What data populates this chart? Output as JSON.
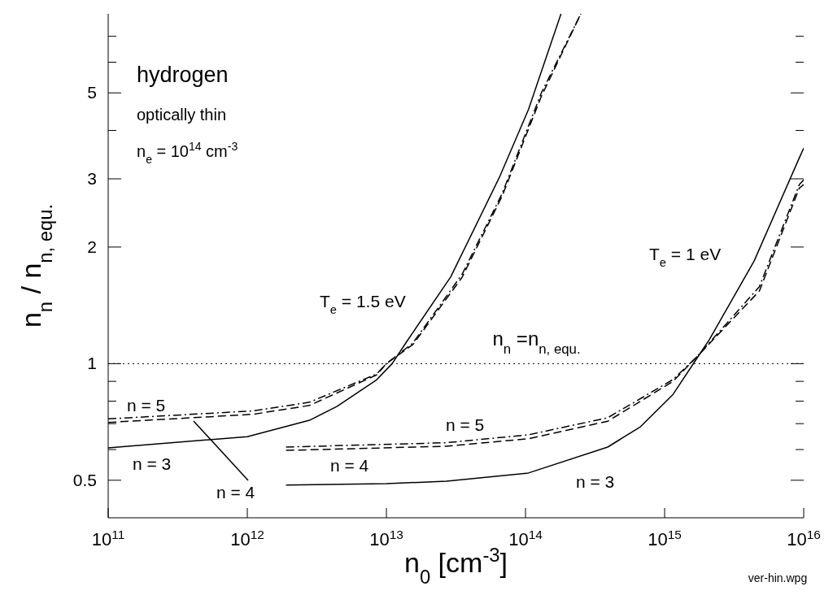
{
  "chart_data": {
    "type": "line",
    "xlabel": "n$_{0}$ [cm$^{-3}$]",
    "ylabel": "n$_{n}$ / n$_{n, equ.}$",
    "log": "xy",
    "xlim": [
      100000000000.0,
      1e+16
    ],
    "xticks": [
      {
        "value": 100000000000.0,
        "label": "10$^{11}$"
      },
      {
        "value": 1000000000000.0,
        "label": "10$^{12}$"
      },
      {
        "value": 10000000000000.0,
        "label": "10$^{13}$"
      },
      {
        "value": 100000000000000.0,
        "label": "10$^{14}$"
      },
      {
        "value": 1000000000000000.0,
        "label": "10$^{15}$"
      },
      {
        "value": 1e+16,
        "label": "10$^{16}$"
      }
    ],
    "ylim": [
      0.4,
      8
    ],
    "yticks": [
      0.5,
      {
        "value": 0.6,
        "label": null
      },
      {
        "value": 0.7,
        "label": null
      },
      {
        "value": 0.8,
        "label": null
      },
      {
        "value": 0.9,
        "label": null
      },
      1,
      2,
      3,
      {
        "value": 4,
        "label": null
      },
      5,
      {
        "value": 6,
        "label": null
      },
      {
        "value": 7,
        "label": null
      }
    ],
    "ref_lines": [
      {
        "axis": "y",
        "value": 1,
        "label": "n$_{n}$ =n$_{n, equ.}$",
        "color": "#000000",
        "line_style": "dotted"
      }
    ],
    "annotations": [
      "hydrogen",
      "optically thin",
      "n$_{e}$ = 10$^{14}$ cm$^{-3}$",
      "T$_{e}$ = 1.5 eV",
      "T$_{e}$  = 1 eV",
      "ver-hin.wpg"
    ],
    "series": [
      {
        "name": "n = 3",
        "color": "#000000",
        "line_style": "solid",
        "x": [
          100000000000.0,
          1000000000000.0,
          2800000000000.0,
          4400000000000.0,
          8500000000000.0,
          11000000000000.0,
          14000000000000.0,
          29000000000000.0,
          65000000000000.0,
          105000000000000.0,
          180000000000000.0
        ],
        "values": [
          0.606,
          0.648,
          0.714,
          0.775,
          0.908,
          1.0,
          1.14,
          1.675,
          3.03,
          4.53,
          8
        ]
      },
      {
        "name": "n = 4",
        "color": "#000000",
        "line_style": "dashed",
        "x": [
          100000000000.0,
          1100000000000.0,
          2800000000000.0,
          8500000000000.0,
          10000000000000.0,
          15500000000000.0,
          35000000000000.0,
          68000000000000.0,
          130000000000000.0,
          250000000000000.0
        ],
        "values": [
          0.705,
          0.74,
          0.78,
          0.935,
          1.0,
          1.12,
          1.67,
          2.71,
          4.9,
          8
        ]
      },
      {
        "name": "n = 5",
        "color": "#000000",
        "line_style": "dashdot",
        "x": [
          100000000000.0,
          1100000000000.0,
          2800000000000.0,
          8500000000000.0,
          10000000000000.0,
          15500000000000.0,
          35000000000000.0,
          68000000000000.0,
          130000000000000.0,
          250000000000000.0
        ],
        "values": [
          0.72,
          0.755,
          0.795,
          0.94,
          1.0,
          1.13,
          1.7,
          2.75,
          5.0,
          8
        ]
      },
      {
        "name": "n = 3",
        "color": "#000000",
        "line_style": "solid",
        "x": [
          1900000000000.0,
          10000000000000.0,
          27000000000000.0,
          105000000000000.0,
          390000000000000.0,
          670000000000000.0,
          1150000000000000.0,
          1700000000000000.0,
          2100000000000000.0,
          4400000000000000.0,
          9300000000000000.0,
          1e+16
        ],
        "values": [
          0.486,
          0.49,
          0.497,
          0.522,
          0.609,
          0.687,
          0.833,
          1.03,
          1.155,
          1.84,
          3.4,
          3.6
        ]
      },
      {
        "name": "n = 4",
        "color": "#000000",
        "line_style": "dashed",
        "x": [
          1900000000000.0,
          27000000000000.0,
          105000000000000.0,
          390000000000000.0,
          1150000000000000.0,
          1700000000000000.0,
          4800000000000000.0,
          9300000000000000.0,
          1e+16
        ],
        "values": [
          0.597,
          0.612,
          0.64,
          0.71,
          0.9,
          1.04,
          1.54,
          2.84,
          2.9
        ]
      },
      {
        "name": "n = 5",
        "color": "#000000",
        "line_style": "dashdot",
        "x": [
          1900000000000.0,
          27000000000000.0,
          105000000000000.0,
          390000000000000.0,
          1150000000000000.0,
          1700000000000000.0,
          4800000000000000.0,
          9300000000000000.0,
          1e+16
        ],
        "values": [
          0.609,
          0.625,
          0.655,
          0.725,
          0.91,
          1.04,
          1.58,
          2.9,
          2.98
        ]
      }
    ]
  }
}
